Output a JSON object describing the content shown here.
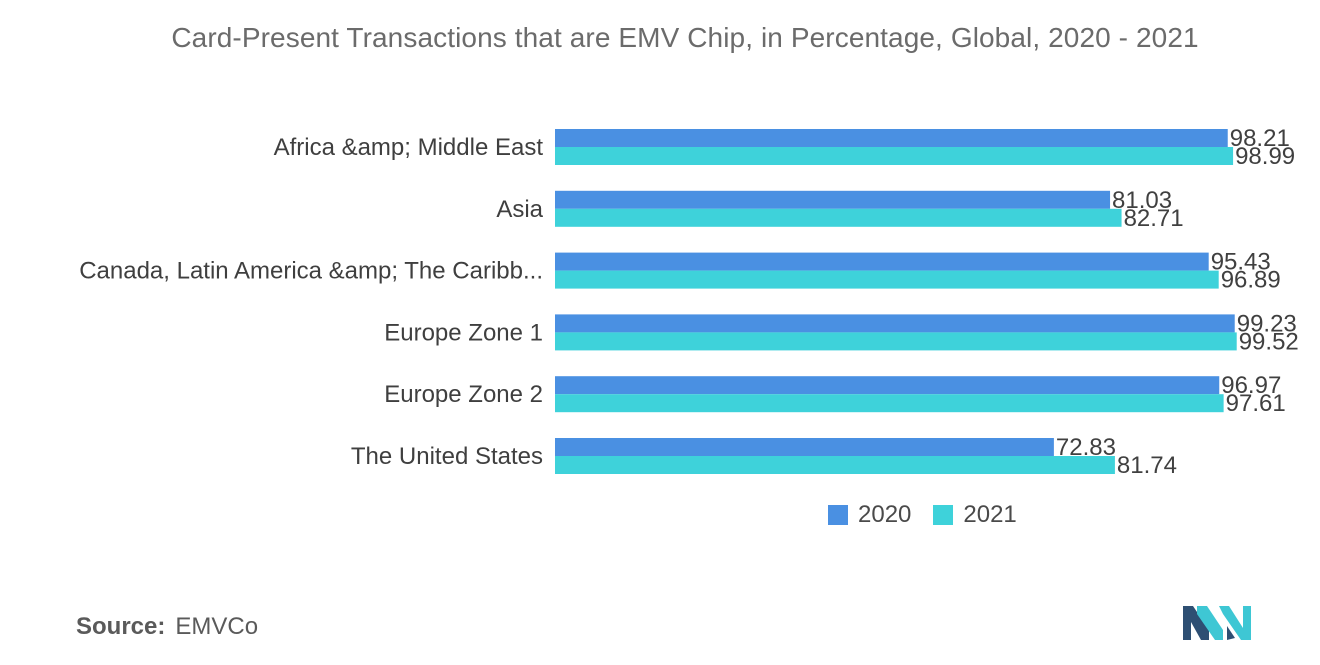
{
  "chart_data": {
    "type": "bar",
    "orientation": "horizontal",
    "title": "Card-Present Transactions that are EMV Chip, in Percentage, Global, 2020 - 2021",
    "categories": [
      "Africa &amp; Middle East",
      "Asia",
      "Canada, Latin America &amp; The Caribb...",
      "Europe Zone 1",
      "Europe Zone 2",
      "The United States"
    ],
    "series": [
      {
        "name": "2020",
        "color": "#4a90e2",
        "values": [
          98.21,
          81.03,
          95.43,
          99.23,
          96.97,
          72.83
        ],
        "labels": [
          "98.21",
          "81.03",
          "95.43",
          "99.23",
          "96.97",
          "72.83"
        ]
      },
      {
        "name": "2021",
        "color": "#3ed2da",
        "values": [
          98.99,
          82.71,
          96.89,
          99.52,
          97.61,
          81.74
        ],
        "labels": [
          "98.99",
          "82.71",
          "96.89",
          "99.52",
          "97.61",
          "81.74"
        ]
      }
    ],
    "xlim": [
      0,
      100
    ],
    "grid": false,
    "legend_position": "bottom-right",
    "xlabel": "",
    "ylabel": ""
  },
  "source": {
    "label": "Source:",
    "text": "EMVCo"
  },
  "logo": {
    "icon": "mordor-logo-icon",
    "colors": [
      "#2e4f73",
      "#3ec7d4"
    ]
  }
}
